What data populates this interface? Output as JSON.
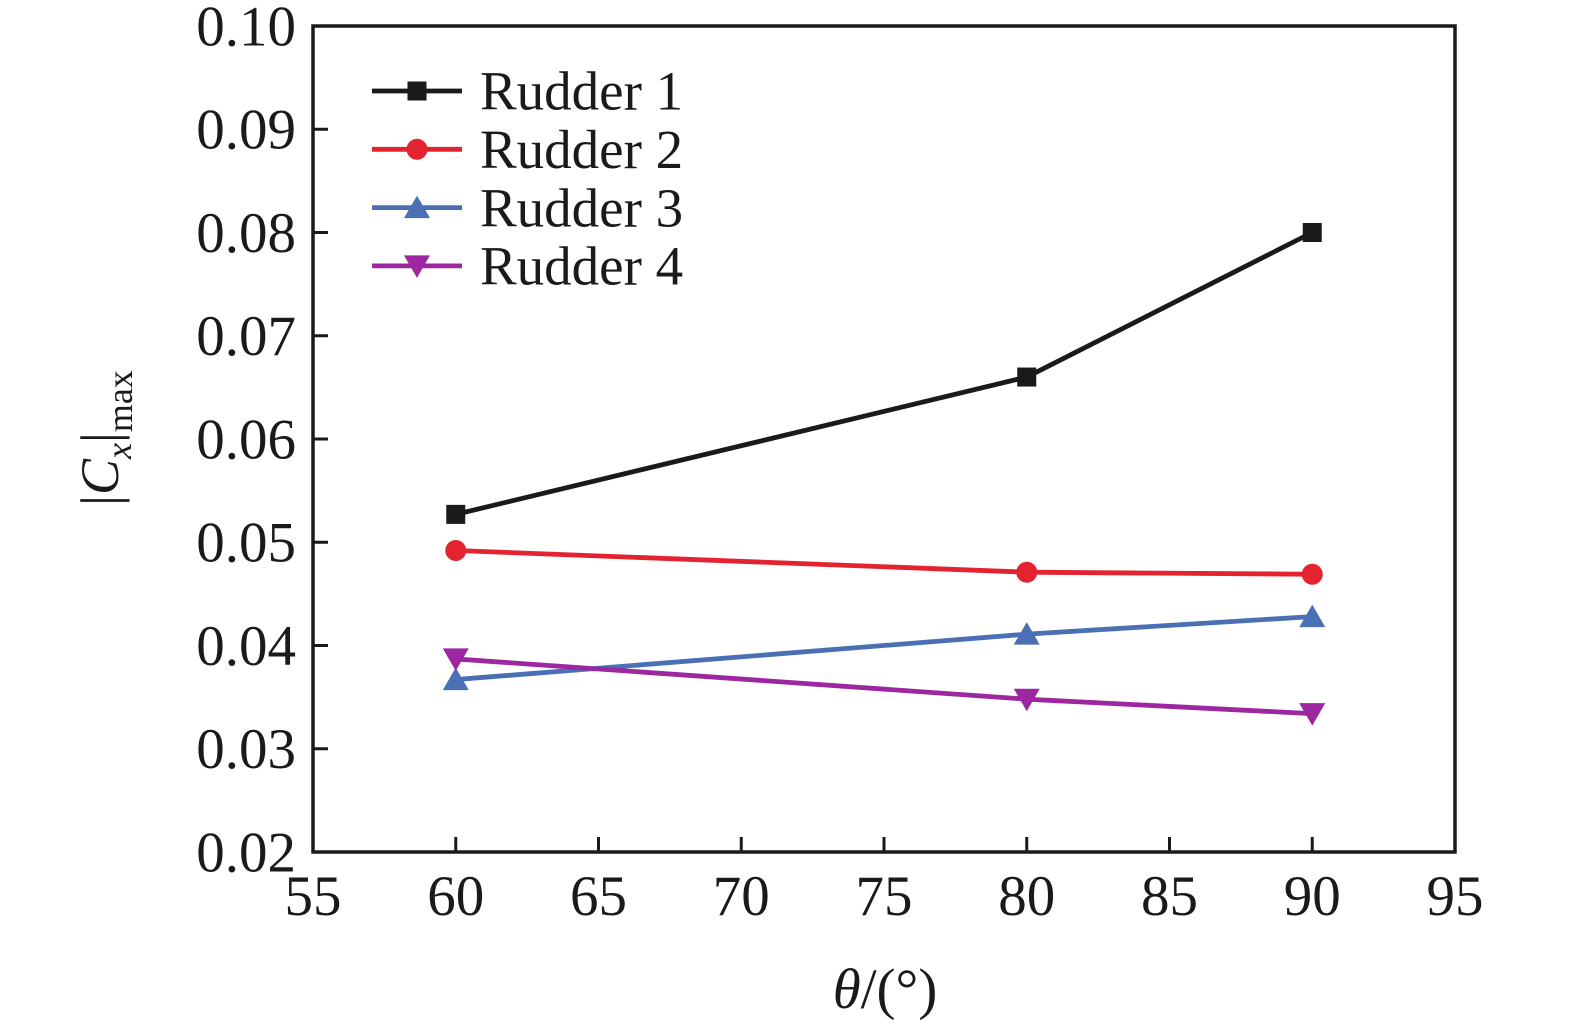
{
  "chart_data": {
    "type": "line",
    "x": [
      60,
      80,
      90
    ],
    "series": [
      {
        "name": "Rudder 1",
        "color": "#1a1a1a",
        "marker": "square",
        "values": [
          0.0527,
          0.066,
          0.08
        ]
      },
      {
        "name": "Rudder 2",
        "color": "#e32430",
        "marker": "circle",
        "values": [
          0.0492,
          0.0471,
          0.0469
        ]
      },
      {
        "name": "Rudder 3",
        "color": "#4a6fb4",
        "marker": "triangle-up",
        "values": [
          0.0367,
          0.0411,
          0.0428
        ]
      },
      {
        "name": "Rudder 4",
        "color": "#9c27a0",
        "marker": "triangle-down",
        "values": [
          0.0387,
          0.0348,
          0.0334
        ]
      }
    ],
    "xlabel": "θ/(°)",
    "ylabel": "|Cx|max",
    "xlabel_rich": {
      "symbol": "θ",
      "rest": "/(°)"
    },
    "ylabel_rich": {
      "bar_open": "|",
      "symbol": "C",
      "subscript": "x",
      "bar_close": "|",
      "subscript2": "max"
    },
    "xlim": [
      55,
      95
    ],
    "ylim": [
      0.02,
      0.1
    ],
    "xtick_labels": [
      "55",
      "60",
      "65",
      "70",
      "75",
      "80",
      "85",
      "90",
      "95"
    ],
    "ytick_labels": [
      "0.02",
      "0.03",
      "0.04",
      "0.05",
      "0.06",
      "0.07",
      "0.08",
      "0.09",
      "0.10"
    ],
    "grid": false,
    "legend_position": "top-left",
    "frame_color": "#1a1a1a",
    "background": "#ffffff"
  }
}
